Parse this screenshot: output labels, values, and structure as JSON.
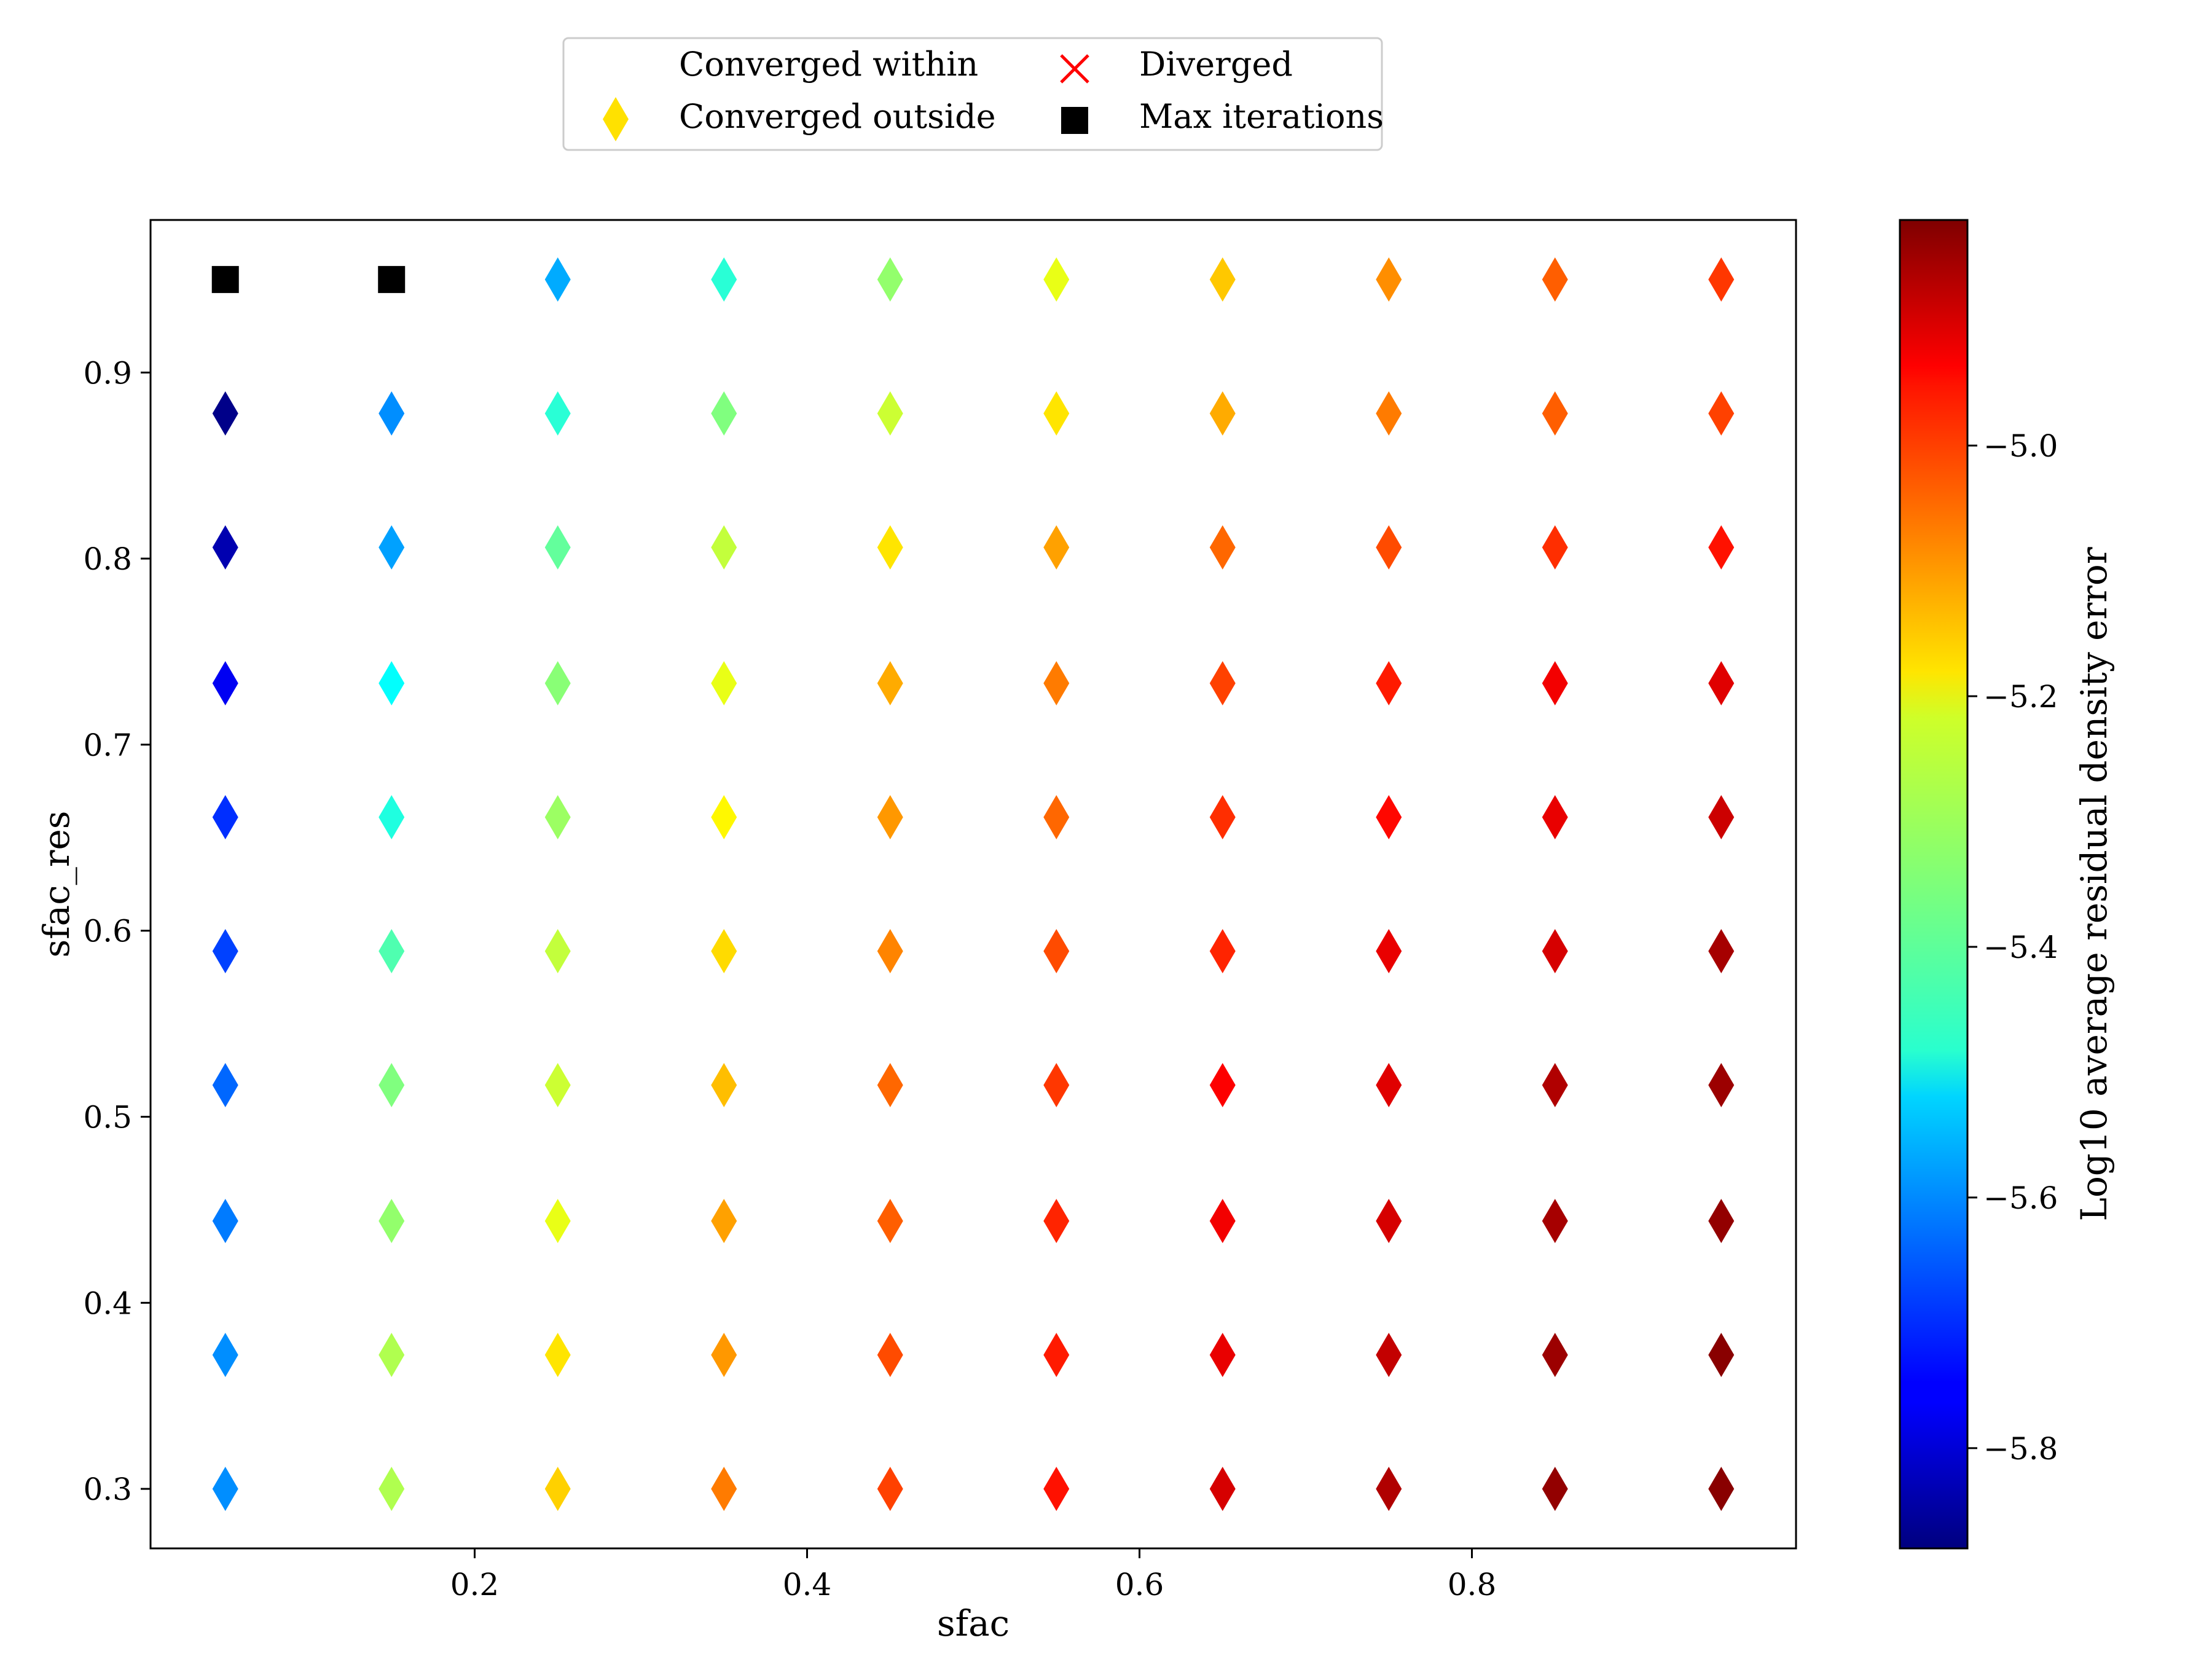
{
  "chart_data": {
    "type": "scatter",
    "xlabel": "sfac",
    "ylabel": "sfac_res",
    "xlim": [
      0.005,
      0.995
    ],
    "ylim": [
      0.268,
      0.982
    ],
    "x_ticks": [
      0.2,
      0.4,
      0.6,
      0.8
    ],
    "y_ticks": [
      0.3,
      0.4,
      0.5,
      0.6,
      0.7,
      0.8,
      0.9
    ],
    "x": [
      0.05,
      0.15,
      0.25,
      0.35,
      0.45,
      0.55,
      0.65,
      0.75,
      0.85,
      0.95
    ],
    "y": [
      0.3,
      0.372,
      0.444,
      0.517,
      0.589,
      0.661,
      0.733,
      0.806,
      0.878,
      0.95
    ],
    "colorbar": {
      "label": "Log10 average residual density error",
      "colormap": "jet",
      "range": [
        -5.88,
        -4.82
      ],
      "ticks": [
        -5.8,
        -5.6,
        -5.4,
        -5.2,
        -5.0
      ],
      "tick_labels": [
        "−5.8",
        "−5.6",
        "−5.4",
        "−5.2",
        "−5.0"
      ]
    },
    "legend": {
      "placement": "top-center, above plot",
      "entries": [
        {
          "label": "Converged within",
          "marker": "none",
          "color": ""
        },
        {
          "label": "Diverged",
          "marker": "x",
          "color": "#ff0000"
        },
        {
          "label": "Converged outside",
          "marker": "diamond",
          "color": "#ffe100"
        },
        {
          "label": "Max iterations",
          "marker": "square",
          "color": "#000000"
        }
      ]
    },
    "series": [
      {
        "status": "Converged outside",
        "marker": "diamond",
        "points": [
          {
            "x": 0.05,
            "y": 0.3,
            "c": -5.6
          },
          {
            "x": 0.15,
            "y": 0.3,
            "c": -5.3
          },
          {
            "x": 0.25,
            "y": 0.3,
            "c": -5.17
          },
          {
            "x": 0.35,
            "y": 0.3,
            "c": -5.08
          },
          {
            "x": 0.45,
            "y": 0.3,
            "c": -5.02
          },
          {
            "x": 0.55,
            "y": 0.3,
            "c": -4.97
          },
          {
            "x": 0.65,
            "y": 0.3,
            "c": -4.91
          },
          {
            "x": 0.75,
            "y": 0.3,
            "c": -4.87
          },
          {
            "x": 0.85,
            "y": 0.3,
            "c": -4.84
          },
          {
            "x": 0.95,
            "y": 0.3,
            "c": -4.83
          },
          {
            "x": 0.05,
            "y": 0.372,
            "c": -5.6
          },
          {
            "x": 0.15,
            "y": 0.372,
            "c": -5.3
          },
          {
            "x": 0.25,
            "y": 0.372,
            "c": -5.19
          },
          {
            "x": 0.35,
            "y": 0.372,
            "c": -5.11
          },
          {
            "x": 0.45,
            "y": 0.372,
            "c": -5.03
          },
          {
            "x": 0.55,
            "y": 0.372,
            "c": -4.98
          },
          {
            "x": 0.65,
            "y": 0.372,
            "c": -4.93
          },
          {
            "x": 0.75,
            "y": 0.372,
            "c": -4.89
          },
          {
            "x": 0.85,
            "y": 0.372,
            "c": -4.85
          },
          {
            "x": 0.95,
            "y": 0.372,
            "c": -4.83
          },
          {
            "x": 0.05,
            "y": 0.444,
            "c": -5.62
          },
          {
            "x": 0.15,
            "y": 0.444,
            "c": -5.33
          },
          {
            "x": 0.25,
            "y": 0.444,
            "c": -5.24
          },
          {
            "x": 0.35,
            "y": 0.444,
            "c": -5.12
          },
          {
            "x": 0.45,
            "y": 0.444,
            "c": -5.05
          },
          {
            "x": 0.55,
            "y": 0.444,
            "c": -4.99
          },
          {
            "x": 0.65,
            "y": 0.444,
            "c": -4.94
          },
          {
            "x": 0.75,
            "y": 0.444,
            "c": -4.91
          },
          {
            "x": 0.85,
            "y": 0.444,
            "c": -4.86
          },
          {
            "x": 0.95,
            "y": 0.444,
            "c": -4.84
          },
          {
            "x": 0.05,
            "y": 0.517,
            "c": -5.64
          },
          {
            "x": 0.15,
            "y": 0.517,
            "c": -5.35
          },
          {
            "x": 0.25,
            "y": 0.517,
            "c": -5.27
          },
          {
            "x": 0.35,
            "y": 0.517,
            "c": -5.15
          },
          {
            "x": 0.45,
            "y": 0.517,
            "c": -5.06
          },
          {
            "x": 0.55,
            "y": 0.517,
            "c": -5.01
          },
          {
            "x": 0.65,
            "y": 0.517,
            "c": -4.95
          },
          {
            "x": 0.75,
            "y": 0.517,
            "c": -4.92
          },
          {
            "x": 0.85,
            "y": 0.517,
            "c": -4.87
          },
          {
            "x": 0.95,
            "y": 0.517,
            "c": -4.85
          },
          {
            "x": 0.05,
            "y": 0.589,
            "c": -5.68
          },
          {
            "x": 0.15,
            "y": 0.589,
            "c": -5.4
          },
          {
            "x": 0.25,
            "y": 0.589,
            "c": -5.28
          },
          {
            "x": 0.35,
            "y": 0.589,
            "c": -5.18
          },
          {
            "x": 0.45,
            "y": 0.589,
            "c": -5.09
          },
          {
            "x": 0.55,
            "y": 0.589,
            "c": -5.03
          },
          {
            "x": 0.65,
            "y": 0.589,
            "c": -4.99
          },
          {
            "x": 0.75,
            "y": 0.589,
            "c": -4.93
          },
          {
            "x": 0.85,
            "y": 0.589,
            "c": -4.91
          },
          {
            "x": 0.95,
            "y": 0.589,
            "c": -4.86
          },
          {
            "x": 0.05,
            "y": 0.661,
            "c": -5.7
          },
          {
            "x": 0.15,
            "y": 0.661,
            "c": -5.45
          },
          {
            "x": 0.25,
            "y": 0.661,
            "c": -5.32
          },
          {
            "x": 0.35,
            "y": 0.661,
            "c": -5.21
          },
          {
            "x": 0.45,
            "y": 0.661,
            "c": -5.11
          },
          {
            "x": 0.55,
            "y": 0.661,
            "c": -5.06
          },
          {
            "x": 0.65,
            "y": 0.661,
            "c": -5.0
          },
          {
            "x": 0.75,
            "y": 0.661,
            "c": -4.96
          },
          {
            "x": 0.85,
            "y": 0.661,
            "c": -4.93
          },
          {
            "x": 0.95,
            "y": 0.661,
            "c": -4.9
          },
          {
            "x": 0.05,
            "y": 0.733,
            "c": -5.76
          },
          {
            "x": 0.15,
            "y": 0.733,
            "c": -5.48
          },
          {
            "x": 0.25,
            "y": 0.733,
            "c": -5.34
          },
          {
            "x": 0.35,
            "y": 0.733,
            "c": -5.24
          },
          {
            "x": 0.45,
            "y": 0.733,
            "c": -5.13
          },
          {
            "x": 0.55,
            "y": 0.733,
            "c": -5.08
          },
          {
            "x": 0.65,
            "y": 0.733,
            "c": -5.02
          },
          {
            "x": 0.75,
            "y": 0.733,
            "c": -4.98
          },
          {
            "x": 0.85,
            "y": 0.733,
            "c": -4.94
          },
          {
            "x": 0.95,
            "y": 0.733,
            "c": -4.92
          },
          {
            "x": 0.05,
            "y": 0.806,
            "c": -5.83
          },
          {
            "x": 0.15,
            "y": 0.806,
            "c": -5.58
          },
          {
            "x": 0.25,
            "y": 0.806,
            "c": -5.38
          },
          {
            "x": 0.35,
            "y": 0.806,
            "c": -5.28
          },
          {
            "x": 0.45,
            "y": 0.806,
            "c": -5.19
          },
          {
            "x": 0.55,
            "y": 0.806,
            "c": -5.12
          },
          {
            "x": 0.65,
            "y": 0.806,
            "c": -5.06
          },
          {
            "x": 0.75,
            "y": 0.806,
            "c": -5.03
          },
          {
            "x": 0.85,
            "y": 0.806,
            "c": -5.0
          },
          {
            "x": 0.95,
            "y": 0.806,
            "c": -4.97
          },
          {
            "x": 0.05,
            "y": 0.878,
            "c": -5.87
          },
          {
            "x": 0.15,
            "y": 0.878,
            "c": -5.6
          },
          {
            "x": 0.25,
            "y": 0.878,
            "c": -5.44
          },
          {
            "x": 0.35,
            "y": 0.878,
            "c": -5.35
          },
          {
            "x": 0.45,
            "y": 0.878,
            "c": -5.27
          },
          {
            "x": 0.55,
            "y": 0.878,
            "c": -5.19
          },
          {
            "x": 0.65,
            "y": 0.878,
            "c": -5.13
          },
          {
            "x": 0.75,
            "y": 0.878,
            "c": -5.08
          },
          {
            "x": 0.85,
            "y": 0.878,
            "c": -5.05
          },
          {
            "x": 0.95,
            "y": 0.878,
            "c": -5.02
          },
          {
            "x": 0.25,
            "y": 0.95,
            "c": -5.57
          },
          {
            "x": 0.35,
            "y": 0.95,
            "c": -5.44
          },
          {
            "x": 0.45,
            "y": 0.95,
            "c": -5.33
          },
          {
            "x": 0.55,
            "y": 0.95,
            "c": -5.24
          },
          {
            "x": 0.65,
            "y": 0.95,
            "c": -5.16
          },
          {
            "x": 0.75,
            "y": 0.95,
            "c": -5.1
          },
          {
            "x": 0.85,
            "y": 0.95,
            "c": -5.05
          },
          {
            "x": 0.95,
            "y": 0.95,
            "c": -5.01
          }
        ]
      },
      {
        "status": "Max iterations",
        "marker": "square",
        "color": "#000000",
        "points": [
          {
            "x": 0.05,
            "y": 0.95
          },
          {
            "x": 0.15,
            "y": 0.95
          }
        ]
      }
    ]
  }
}
